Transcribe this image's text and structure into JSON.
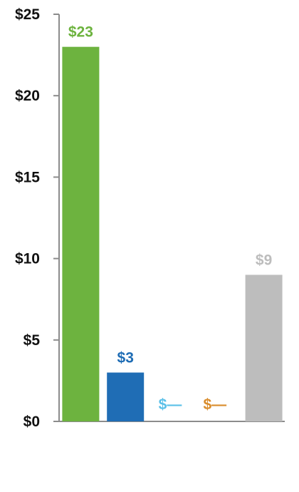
{
  "chart_data": {
    "type": "bar",
    "title": "",
    "xlabel": "",
    "ylabel": "",
    "ylim": [
      0,
      25
    ],
    "yticks": [
      {
        "value": 0,
        "label": "$0"
      },
      {
        "value": 5,
        "label": "$5"
      },
      {
        "value": 10,
        "label": "$10"
      },
      {
        "value": 15,
        "label": "$15"
      },
      {
        "value": 20,
        "label": "$20"
      },
      {
        "value": 25,
        "label": "$25"
      }
    ],
    "grid": false,
    "legend": "none",
    "bars": [
      {
        "value": 23,
        "label": "$23",
        "color": "#6db33f"
      },
      {
        "value": 3,
        "label": "$3",
        "color": "#1f6db5"
      },
      {
        "value": 0,
        "label": "$—",
        "color": "#5bc0e8"
      },
      {
        "value": 0,
        "label": "$—",
        "color": "#d98c2b"
      },
      {
        "value": 9,
        "label": "$9",
        "color": "#bdbdbd"
      }
    ],
    "axis_color": "#8c8c8c"
  }
}
